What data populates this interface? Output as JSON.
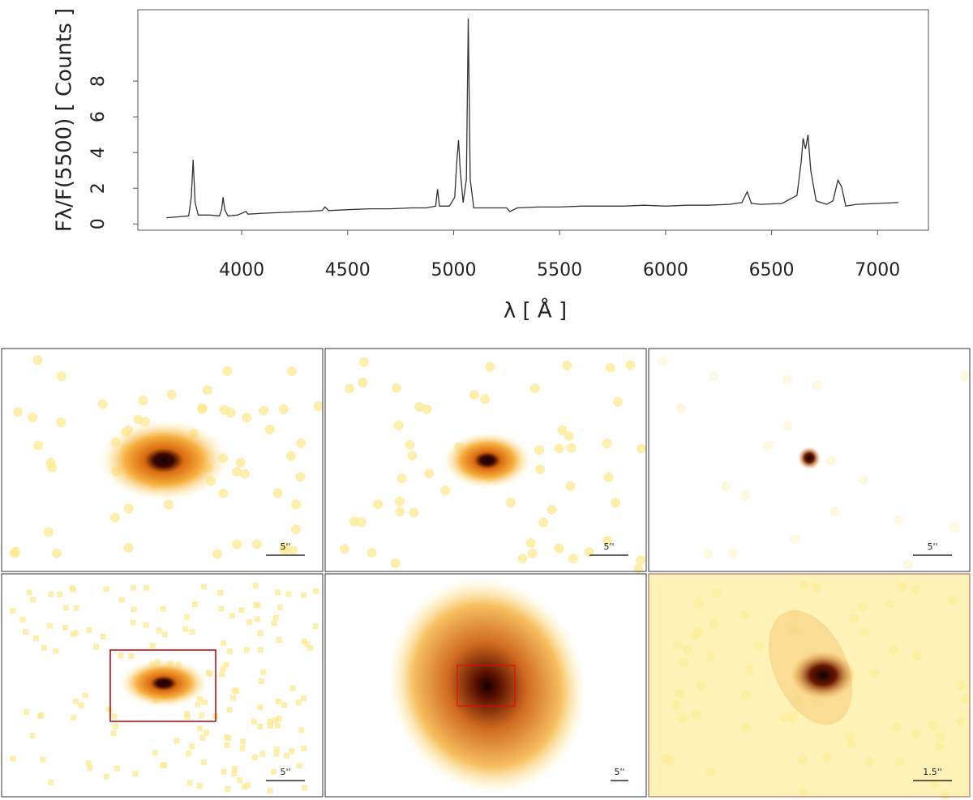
{
  "chart_data": {
    "type": "line",
    "ylabel": "Fλ/F(5500) [ Counts ]",
    "xlabel": "λ [ Å ]",
    "x": [
      3645,
      3700,
      3750,
      3762,
      3771,
      3780,
      3795,
      3850,
      3895,
      3905,
      3912,
      3920,
      3935,
      3980,
      4020,
      4030,
      4100,
      4200,
      4300,
      4380,
      4393,
      4410,
      4500,
      4600,
      4700,
      4800,
      4870,
      4915,
      4924,
      4933,
      4980,
      5005,
      5015,
      5023,
      5031,
      5045,
      5060,
      5069,
      5078,
      5095,
      5150,
      5250,
      5265,
      5300,
      5400,
      5500,
      5600,
      5700,
      5800,
      5900,
      6000,
      6100,
      6200,
      6300,
      6360,
      6385,
      6405,
      6450,
      6550,
      6620,
      6640,
      6649,
      6660,
      6672,
      6685,
      6710,
      6760,
      6790,
      6813,
      6830,
      6850,
      6900,
      7000,
      7099
    ],
    "series": [
      {
        "color": "#333333",
        "values": [
          0.35,
          0.4,
          0.45,
          1.5,
          3.6,
          1.2,
          0.5,
          0.5,
          0.45,
          0.8,
          1.5,
          0.8,
          0.45,
          0.5,
          0.7,
          0.55,
          0.6,
          0.65,
          0.7,
          0.75,
          0.95,
          0.75,
          0.8,
          0.85,
          0.85,
          0.9,
          0.9,
          1.0,
          1.95,
          1.0,
          1.0,
          1.5,
          3.5,
          4.7,
          3.0,
          1.2,
          2.5,
          11.5,
          2.5,
          0.9,
          0.9,
          0.9,
          0.7,
          0.9,
          0.95,
          0.95,
          1.0,
          1.0,
          1.0,
          1.05,
          1.0,
          1.05,
          1.05,
          1.1,
          1.2,
          1.8,
          1.15,
          1.1,
          1.15,
          1.6,
          3.5,
          4.8,
          4.2,
          5.0,
          3.0,
          1.3,
          1.1,
          1.3,
          2.45,
          2.1,
          1.0,
          1.1,
          1.15,
          1.2
        ]
      }
    ],
    "xlim": [
      3510,
      7240
    ],
    "ylim": [
      -0.35,
      12
    ],
    "xticks": [
      4000,
      4500,
      5000,
      5500,
      6000,
      6500,
      7000
    ],
    "yticks": [
      0,
      2,
      4,
      6,
      8
    ],
    "grid": false
  },
  "panels": [
    {
      "scale": "5''"
    },
    {
      "scale": "5''"
    },
    {
      "scale": "5''"
    },
    {
      "scale": "5''"
    },
    {
      "scale": "5''"
    },
    {
      "scale": "1.5''"
    }
  ]
}
